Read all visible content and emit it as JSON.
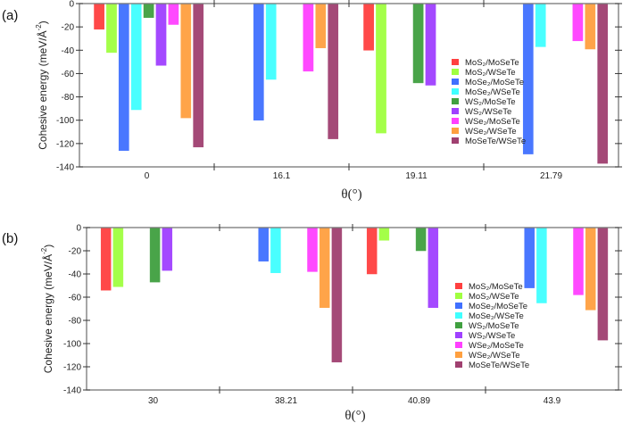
{
  "chart_data": [
    {
      "type": "bar",
      "panel_label": "(a)",
      "xlabel": "θ(°)",
      "ylabel": "Cohesive energy (meV/Å",
      "ylabel_sup": "-2",
      "ylabel_end": ")",
      "ylim": [
        -140,
        0
      ],
      "yticks": [
        0,
        -20,
        -40,
        -60,
        -80,
        -100,
        -120,
        -140
      ],
      "categories": [
        "0",
        "16.1",
        "19.11",
        "21.79"
      ],
      "legend_position": "center-right",
      "series": [
        {
          "name": "MoS₂/MoSeTe",
          "color": "#ff4040",
          "values": [
            -22,
            null,
            -40,
            null
          ]
        },
        {
          "name": "MoS₂/WSeTe",
          "color": "#a0ff40",
          "values": [
            -42,
            null,
            -111,
            null
          ]
        },
        {
          "name": "MoSe₂/MoSeTe",
          "color": "#4070ff",
          "values": [
            -126,
            -100,
            null,
            -129
          ]
        },
        {
          "name": "MoSe₂/WSeTe",
          "color": "#40ffff",
          "values": [
            -91,
            -65,
            null,
            -37
          ]
        },
        {
          "name": "WS₂/MoSeTe",
          "color": "#40a040",
          "values": [
            -12,
            null,
            -68,
            null
          ]
        },
        {
          "name": "WS₂/WSeTe",
          "color": "#a040ff",
          "values": [
            -53,
            null,
            -70,
            null
          ]
        },
        {
          "name": "WSe₂/MoSeTe",
          "color": "#ff40ff",
          "values": [
            -18,
            -58,
            null,
            -32
          ]
        },
        {
          "name": "WSe₂/WSeTe",
          "color": "#ffa040",
          "values": [
            -98,
            -38,
            null,
            -39
          ]
        },
        {
          "name": "MoSeTe/WSeTe",
          "color": "#a04070",
          "values": [
            -123,
            -116,
            null,
            -137
          ]
        }
      ]
    },
    {
      "type": "bar",
      "panel_label": "(b)",
      "xlabel": "θ(°)",
      "ylabel": "Cohesive energy (meV/Å",
      "ylabel_sup": "-2",
      "ylabel_end": ")",
      "ylim": [
        -140,
        0
      ],
      "yticks": [
        0,
        -20,
        -40,
        -60,
        -80,
        -100,
        -120,
        -140
      ],
      "categories": [
        "30",
        "38.21",
        "40.89",
        "43.9"
      ],
      "legend_position": "center-right",
      "series": [
        {
          "name": "MoS₂/MoSeTe",
          "color": "#ff4040",
          "values": [
            -54,
            null,
            -40,
            null
          ]
        },
        {
          "name": "MoS₂/WSeTe",
          "color": "#a0ff40",
          "values": [
            -51,
            null,
            -11,
            null
          ]
        },
        {
          "name": "MoSe₂/MoSeTe",
          "color": "#4070ff",
          "values": [
            null,
            -29,
            null,
            -52
          ]
        },
        {
          "name": "MoSe₂/WSeTe",
          "color": "#40ffff",
          "values": [
            null,
            -39,
            null,
            -65
          ]
        },
        {
          "name": "WS₂/MoSeTe",
          "color": "#40a040",
          "values": [
            -47,
            null,
            -20,
            null
          ]
        },
        {
          "name": "WS₂/WSeTe",
          "color": "#a040ff",
          "values": [
            -37,
            null,
            -69,
            null
          ]
        },
        {
          "name": "WSe₂/MoSeTe",
          "color": "#ff40ff",
          "values": [
            null,
            -38,
            null,
            -58
          ]
        },
        {
          "name": "WSe₂/WSeTe",
          "color": "#ffa040",
          "values": [
            null,
            -69,
            null,
            -71
          ]
        },
        {
          "name": "MoSeTe/WSeTe",
          "color": "#a04070",
          "values": [
            null,
            -116,
            null,
            -97
          ]
        }
      ]
    }
  ]
}
